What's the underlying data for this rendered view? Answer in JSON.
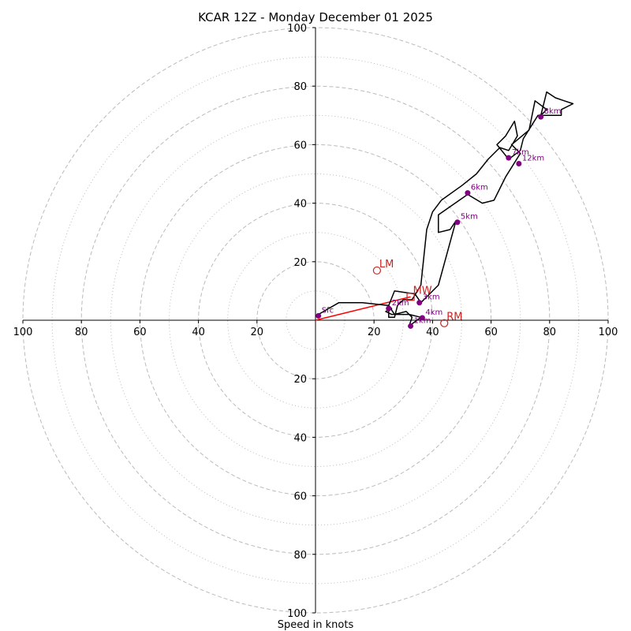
{
  "chart_data": {
    "type": "hodograph",
    "title": "KCAR 12Z - Monday December 01 2025",
    "xlabel": "Speed in knots",
    "range": [
      -100,
      100
    ],
    "major_rings": [
      20,
      40,
      60,
      80,
      100
    ],
    "minor_rings": [
      10,
      30,
      50,
      70,
      90
    ],
    "x_tick_labels": [
      "100",
      "80",
      "60",
      "40",
      "20",
      "20",
      "40",
      "60",
      "80",
      "100"
    ],
    "x_tick_values": [
      -100,
      -80,
      -60,
      -40,
      -20,
      20,
      40,
      60,
      80,
      100
    ],
    "y_tick_labels": [
      "100",
      "80",
      "60",
      "40",
      "20",
      "20",
      "40",
      "60",
      "80",
      "100"
    ],
    "y_tick_values": [
      100,
      80,
      60,
      40,
      20,
      -20,
      -40,
      -60,
      -80,
      -100
    ],
    "profile": [
      [
        1,
        2
      ],
      [
        8,
        6
      ],
      [
        16,
        6
      ],
      [
        25,
        5
      ],
      [
        27,
        10
      ],
      [
        34,
        9
      ],
      [
        36,
        6
      ],
      [
        42,
        12
      ],
      [
        48,
        34
      ],
      [
        46,
        31
      ],
      [
        42,
        30
      ],
      [
        42,
        36
      ],
      [
        52,
        43
      ],
      [
        57,
        40
      ],
      [
        61,
        41
      ],
      [
        65,
        49
      ],
      [
        70,
        57
      ],
      [
        67,
        60
      ],
      [
        73,
        65
      ],
      [
        75,
        75
      ],
      [
        79,
        72
      ],
      [
        77,
        70
      ],
      [
        79,
        78
      ],
      [
        82,
        76
      ],
      [
        85,
        75
      ],
      [
        88,
        74
      ],
      [
        84,
        72
      ],
      [
        84,
        70
      ],
      [
        76,
        70
      ],
      [
        71,
        62
      ],
      [
        70,
        58
      ],
      [
        66,
        55
      ],
      [
        62,
        60
      ],
      [
        65,
        63
      ],
      [
        68,
        68
      ],
      [
        69,
        63
      ],
      [
        66,
        58
      ],
      [
        63,
        59
      ],
      [
        59,
        55
      ],
      [
        55,
        50
      ],
      [
        50,
        46
      ],
      [
        43,
        41
      ],
      [
        40,
        37
      ],
      [
        38,
        31
      ],
      [
        36,
        12
      ],
      [
        33,
        7
      ],
      [
        30,
        7
      ],
      [
        28,
        5
      ],
      [
        27,
        1
      ],
      [
        25,
        1
      ],
      [
        25,
        5
      ],
      [
        26,
        4
      ],
      [
        24,
        3
      ],
      [
        26,
        2
      ],
      [
        32,
        2
      ],
      [
        33,
        1
      ],
      [
        32,
        -2
      ],
      [
        36,
        1
      ],
      [
        32,
        2
      ],
      [
        31,
        3
      ],
      [
        27,
        2
      ],
      [
        25,
        5
      ]
    ],
    "height_markers": [
      {
        "label": "Sfc",
        "u": 1,
        "v": 1.5
      },
      {
        "label": "1km",
        "u": 32.5,
        "v": -2
      },
      {
        "label": "2km",
        "u": 25,
        "v": 4
      },
      {
        "label": "3km",
        "u": 35.5,
        "v": 6
      },
      {
        "label": "4km",
        "u": 36.5,
        "v": 0.8
      },
      {
        "label": "5km",
        "u": 48.5,
        "v": 33.5
      },
      {
        "label": "6km",
        "u": 52,
        "v": 43.5
      },
      {
        "label": "7km",
        "u": 66,
        "v": 55.5
      },
      {
        "label": "8km",
        "u": 77,
        "v": 69.5
      },
      {
        "label": "12km",
        "u": 69.5,
        "v": 53.5
      }
    ],
    "motion_markers": [
      {
        "label": "LM",
        "u": 21,
        "v": 17,
        "shape": "circle"
      },
      {
        "label": "MW",
        "u": 32.5,
        "v": 8,
        "shape": "square"
      },
      {
        "label": "RM",
        "u": 44,
        "v": -1,
        "shape": "circle"
      }
    ],
    "mean_wind_line": {
      "from": [
        0,
        0
      ],
      "to": [
        32.5,
        8
      ]
    },
    "colors": {
      "ring": "#bbbbbb",
      "axis": "#000000",
      "profile": "#000000",
      "height_marker": "#800080",
      "motion_marker": "#cc2222",
      "mean_wind_line": "#ff0000"
    }
  }
}
